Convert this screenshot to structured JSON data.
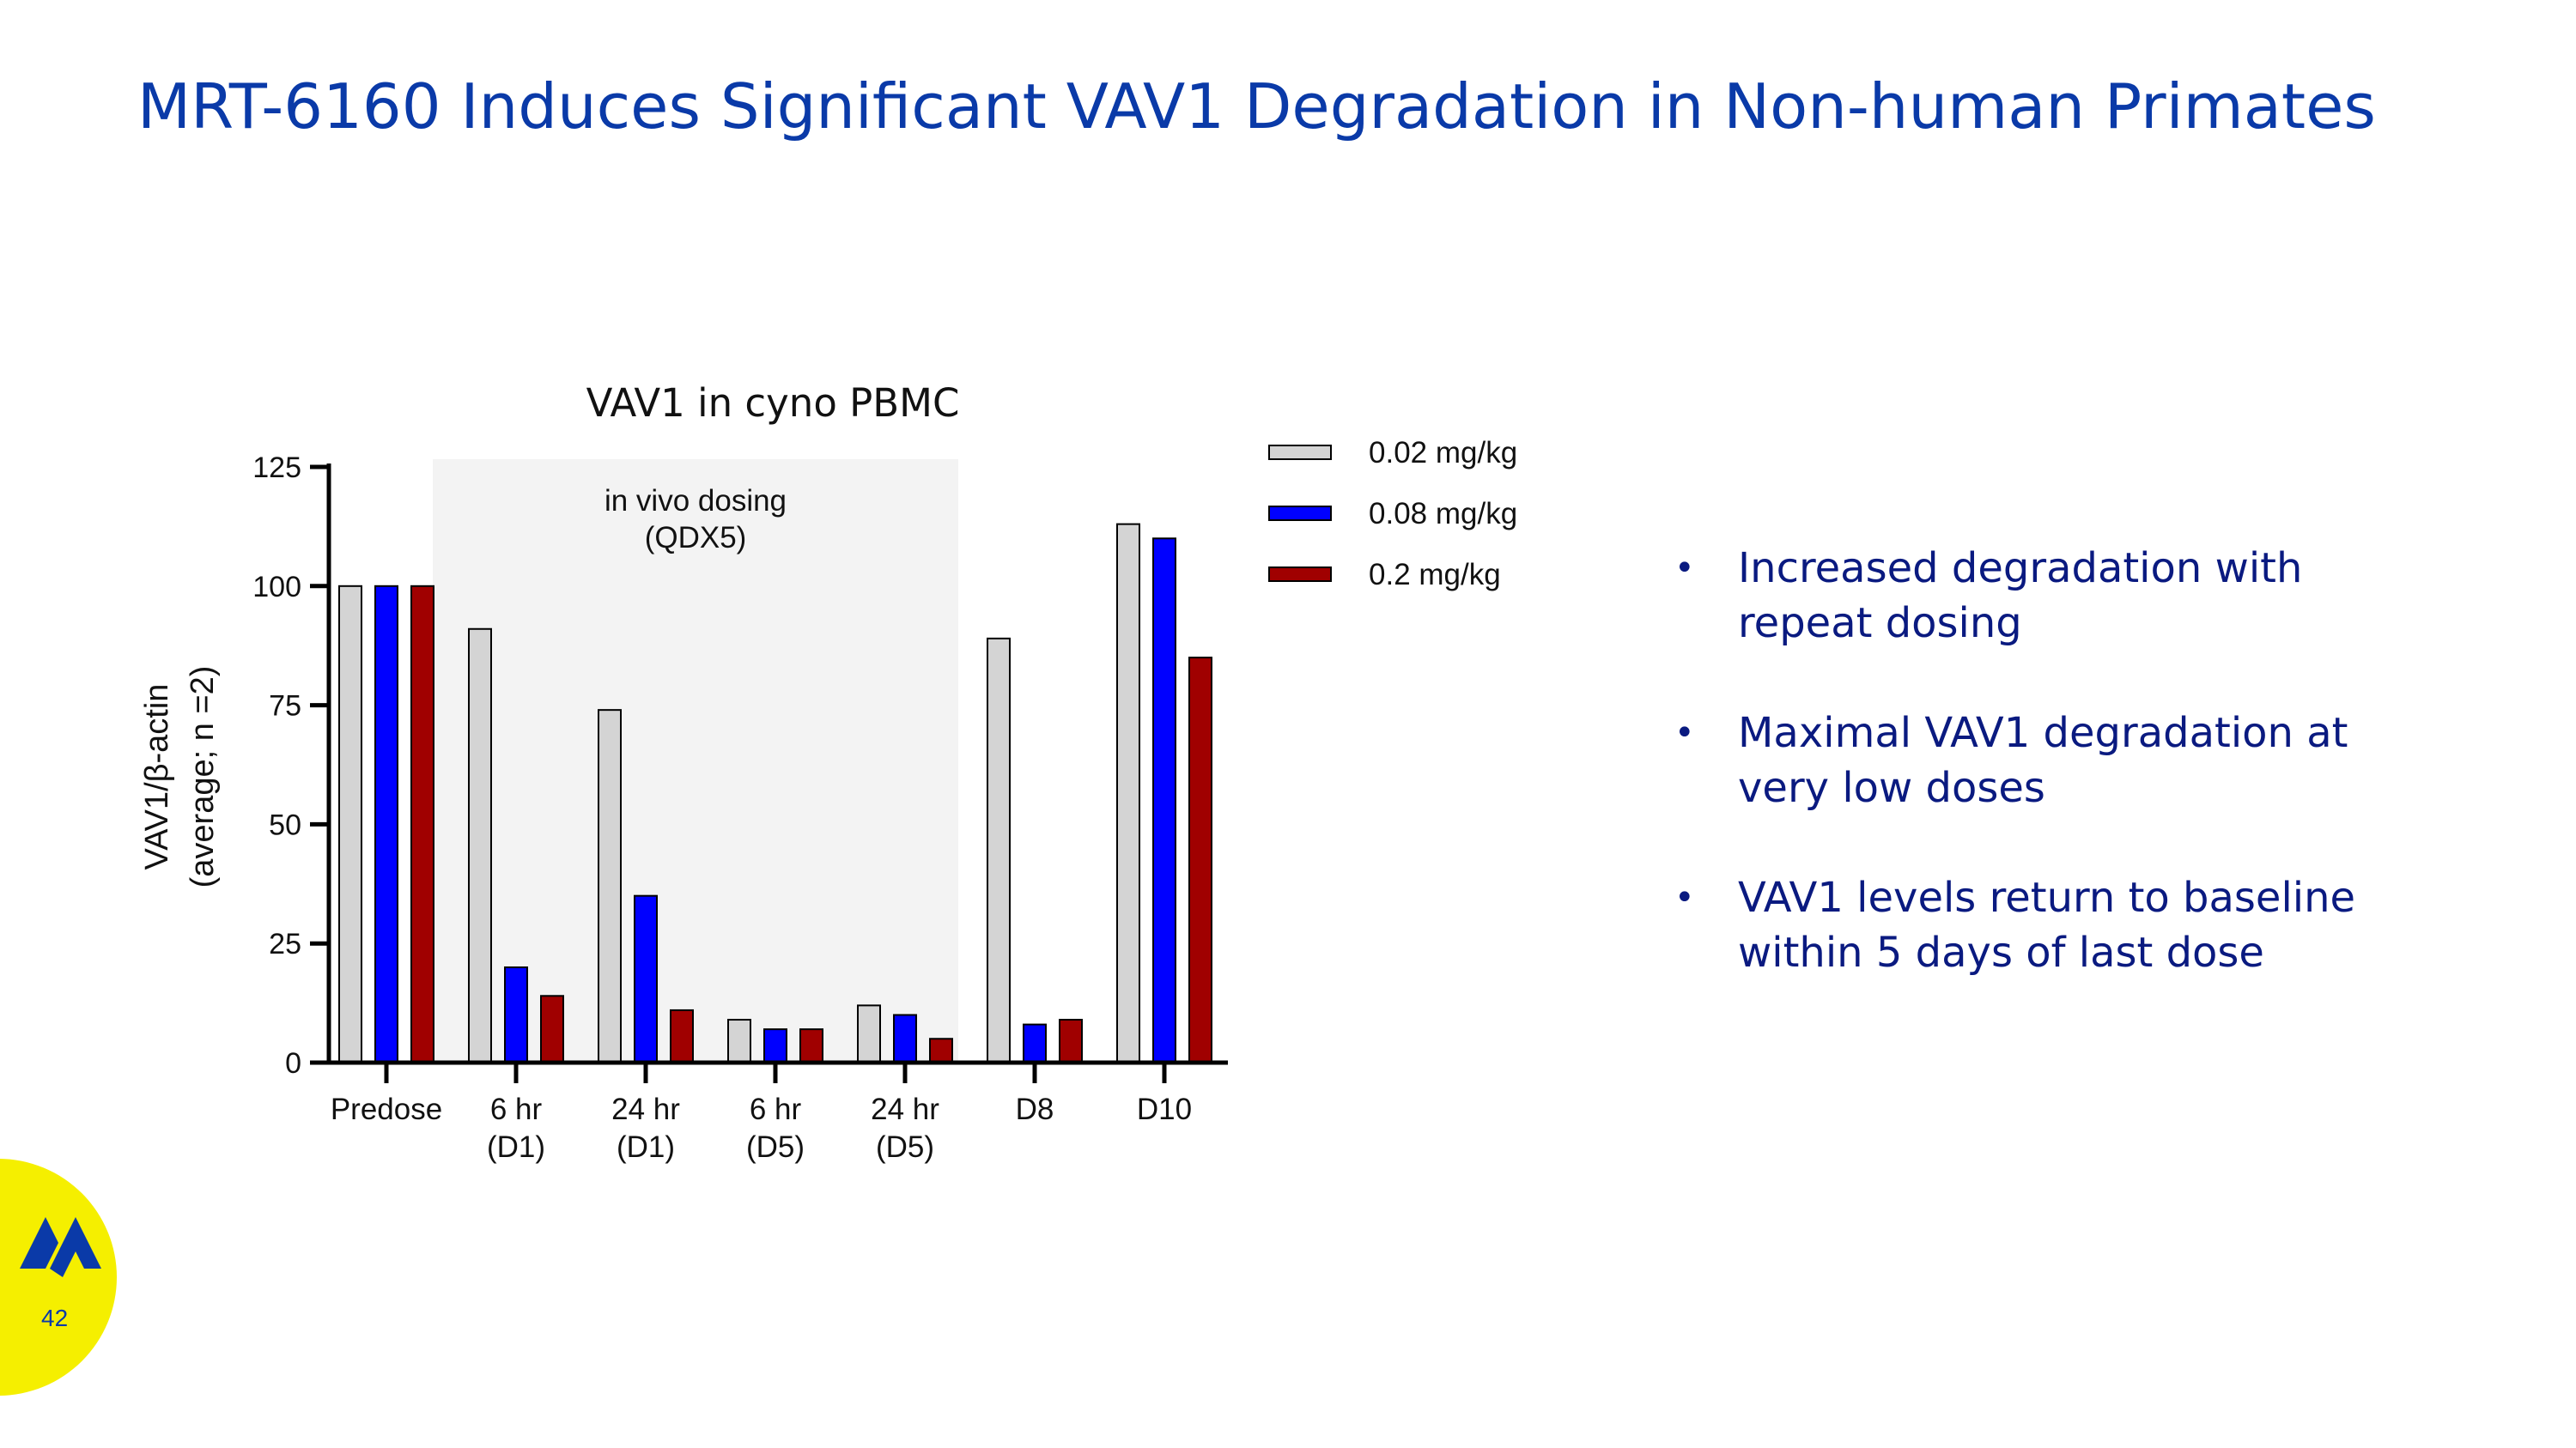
{
  "slide": {
    "title": "MRT-6160 Induces Significant VAV1 Degradation in Non-human Primates",
    "page_number": "42",
    "bullets": [
      {
        "line1": "Increased degradation with",
        "line2": "repeat dosing"
      },
      {
        "line1": "Maximal VAV1 degradation at",
        "line2": "very low doses"
      },
      {
        "line1": "VAV1 levels return to baseline",
        "line2": "within 5 days of last dose"
      }
    ]
  },
  "chart_data": {
    "type": "bar",
    "title": "VAV1 in cyno PBMC",
    "ylabel_line1": "VAV1/β-actin",
    "ylabel_line2": "(average; n =2)",
    "ylim": [
      0,
      125
    ],
    "yticks": [
      "0",
      "25",
      "50",
      "75",
      "100",
      "125"
    ],
    "categories": [
      {
        "line1": "Predose",
        "line2": ""
      },
      {
        "line1": "6 hr",
        "line2": "(D1)"
      },
      {
        "line1": "24 hr",
        "line2": "(D1)"
      },
      {
        "line1": "6 hr",
        "line2": "(D5)"
      },
      {
        "line1": "24 hr",
        "line2": "(D5)"
      },
      {
        "line1": "D8",
        "line2": ""
      },
      {
        "line1": "D10",
        "line2": ""
      }
    ],
    "series": [
      {
        "name": "0.02 mg/kg",
        "color": "#d4d4d4",
        "values": [
          100,
          91,
          74,
          9,
          12,
          89,
          113
        ]
      },
      {
        "name": "0.08 mg/kg",
        "color": "#0000ff",
        "values": [
          100,
          20,
          35,
          7,
          10,
          8,
          110
        ]
      },
      {
        "name": "0.2 mg/kg",
        "color": "#a00000",
        "values": [
          100,
          14,
          11,
          7,
          5,
          9,
          85
        ]
      }
    ],
    "shaded_region": {
      "label_line1": "in vivo dosing",
      "label_line2": "(QDX5)",
      "from_category": 1,
      "to_category": 4,
      "color": "#f3f3f3"
    },
    "legend_position": "right",
    "grid": false
  }
}
